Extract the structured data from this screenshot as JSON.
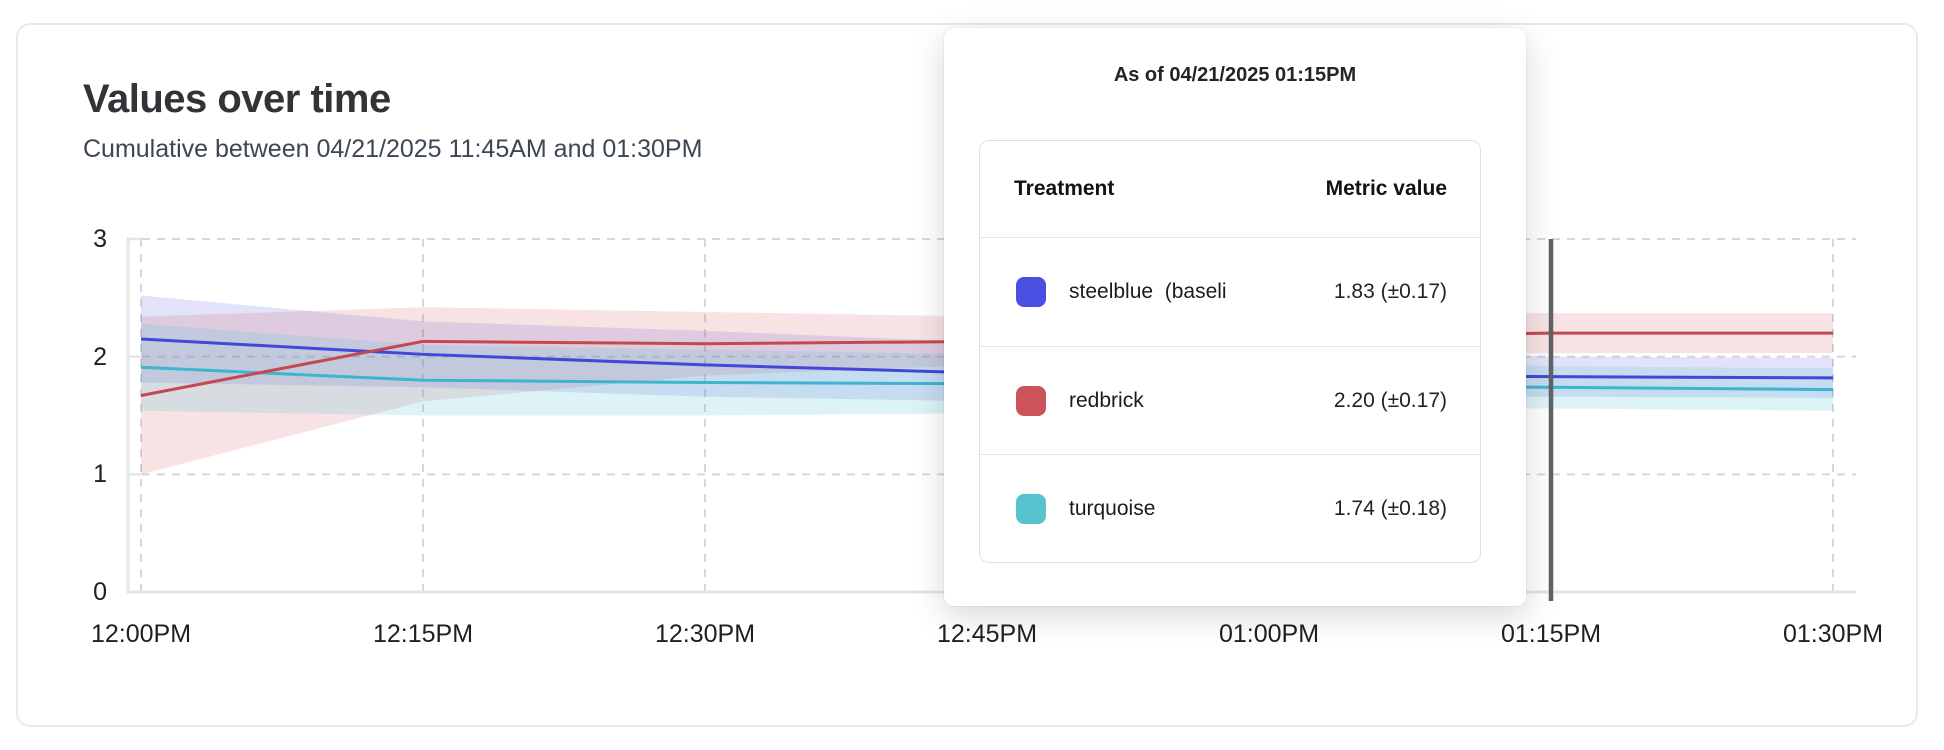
{
  "card": {
    "title": "Values over time",
    "subtitle": "Cumulative between 04/21/2025 11:45AM and 01:30PM"
  },
  "tooltip": {
    "as_of": "As of 04/21/2025 01:15PM",
    "columns": {
      "treatment": "Treatment",
      "metric_value": "Metric value"
    },
    "rows": [
      {
        "swatch_color": "#4B4FE1",
        "treatment": "steelblue  (baseli",
        "metric_value": "1.83 (±0.17)"
      },
      {
        "swatch_color": "#CB545B",
        "treatment": "redbrick",
        "metric_value": "2.20 (±0.17)"
      },
      {
        "swatch_color": "#57C3CF",
        "treatment": "turquoise",
        "metric_value": "1.74 (±0.18)"
      }
    ]
  },
  "chart_data": {
    "type": "line",
    "title": "Values over time",
    "xlabel": "",
    "ylabel": "",
    "ylim": [
      0,
      3
    ],
    "y_ticks": [
      0,
      1,
      2,
      3
    ],
    "x_tick_labels": [
      "12:00PM",
      "12:15PM",
      "12:30PM",
      "12:45PM",
      "01:00PM",
      "01:15PM",
      "01:30PM"
    ],
    "grid": "dashed",
    "legend_position": "tooltip-only",
    "hover": {
      "x_label": "01:15PM",
      "line_color": "#606266"
    },
    "series": [
      {
        "name": "steelblue",
        "color": "#4347D9",
        "band_color": "#5156DD",
        "band_opacity": 0.17,
        "values": [
          2.15,
          2.02,
          1.93,
          1.86,
          1.84,
          1.83,
          1.82
        ],
        "band_upper": [
          2.52,
          2.3,
          2.22,
          2.12,
          2.05,
          2.0,
          1.99
        ],
        "band_lower": [
          1.78,
          1.74,
          1.66,
          1.62,
          1.64,
          1.66,
          1.65
        ]
      },
      {
        "name": "redbrick",
        "color": "#C6484F",
        "band_color": "#CF5A60",
        "band_opacity": 0.17,
        "values": [
          1.67,
          2.13,
          2.11,
          2.13,
          2.17,
          2.2,
          2.2
        ],
        "band_upper": [
          2.34,
          2.42,
          2.38,
          2.34,
          2.36,
          2.37,
          2.37
        ],
        "band_lower": [
          1.0,
          1.62,
          1.84,
          1.93,
          2.0,
          2.03,
          2.03
        ]
      },
      {
        "name": "turquoise",
        "color": "#3EB5CE",
        "band_color": "#54C3D0",
        "band_opacity": 0.2,
        "values": [
          1.91,
          1.8,
          1.78,
          1.77,
          1.75,
          1.74,
          1.72
        ],
        "band_upper": [
          2.28,
          2.1,
          2.06,
          2.02,
          1.96,
          1.92,
          1.9
        ],
        "band_lower": [
          1.54,
          1.5,
          1.5,
          1.52,
          1.54,
          1.56,
          1.54
        ]
      }
    ]
  }
}
